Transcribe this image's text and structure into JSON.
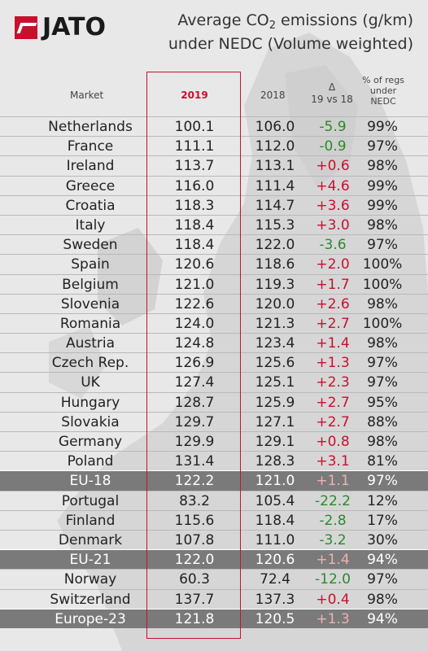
{
  "brand": {
    "logo_text": "JATO",
    "logo_color": "#c8102e"
  },
  "title": {
    "line1_pre": "Average CO",
    "line1_sub": "2",
    "line1_post": " emissions (g/km)",
    "line2": "under NEDC (Volume weighted)"
  },
  "headers": {
    "market": "Market",
    "y2019": "2019",
    "y2018": "2018",
    "delta_symbol": "Δ",
    "delta_label": "19 vs 18",
    "regs_line1": "% of regs",
    "regs_line2": "under",
    "regs_line3": "NEDC"
  },
  "colors": {
    "highlight": "#c8102e",
    "increase": "#c8102e",
    "decrease": "#2a8a2a",
    "aggregate_row": "#7a7a7a"
  },
  "rows": [
    {
      "market": "Netherlands",
      "y2019": "100.1",
      "y2018": "106.0",
      "delta": "-5.9",
      "regs": "99%",
      "agg": false
    },
    {
      "market": "France",
      "y2019": "111.1",
      "y2018": "112.0",
      "delta": "-0.9",
      "regs": "97%",
      "agg": false
    },
    {
      "market": "Ireland",
      "y2019": "113.7",
      "y2018": "113.1",
      "delta": "+0.6",
      "regs": "98%",
      "agg": false
    },
    {
      "market": "Greece",
      "y2019": "116.0",
      "y2018": "111.4",
      "delta": "+4.6",
      "regs": "99%",
      "agg": false
    },
    {
      "market": "Croatia",
      "y2019": "118.3",
      "y2018": "114.7",
      "delta": "+3.6",
      "regs": "99%",
      "agg": false
    },
    {
      "market": "Italy",
      "y2019": "118.4",
      "y2018": "115.3",
      "delta": "+3.0",
      "regs": "98%",
      "agg": false
    },
    {
      "market": "Sweden",
      "y2019": "118.4",
      "y2018": "122.0",
      "delta": "-3.6",
      "regs": "97%",
      "agg": false
    },
    {
      "market": "Spain",
      "y2019": "120.6",
      "y2018": "118.6",
      "delta": "+2.0",
      "regs": "100%",
      "agg": false
    },
    {
      "market": "Belgium",
      "y2019": "121.0",
      "y2018": "119.3",
      "delta": "+1.7",
      "regs": "100%",
      "agg": false
    },
    {
      "market": "Slovenia",
      "y2019": "122.6",
      "y2018": "120.0",
      "delta": "+2.6",
      "regs": "98%",
      "agg": false
    },
    {
      "market": "Romania",
      "y2019": "124.0",
      "y2018": "121.3",
      "delta": "+2.7",
      "regs": "100%",
      "agg": false
    },
    {
      "market": "Austria",
      "y2019": "124.8",
      "y2018": "123.4",
      "delta": "+1.4",
      "regs": "98%",
      "agg": false
    },
    {
      "market": "Czech Rep.",
      "y2019": "126.9",
      "y2018": "125.6",
      "delta": "+1.3",
      "regs": "97%",
      "agg": false
    },
    {
      "market": "UK",
      "y2019": "127.4",
      "y2018": "125.1",
      "delta": "+2.3",
      "regs": "97%",
      "agg": false
    },
    {
      "market": "Hungary",
      "y2019": "128.7",
      "y2018": "125.9",
      "delta": "+2.7",
      "regs": "95%",
      "agg": false
    },
    {
      "market": "Slovakia",
      "y2019": "129.7",
      "y2018": "127.1",
      "delta": "+2.7",
      "regs": "88%",
      "agg": false
    },
    {
      "market": "Germany",
      "y2019": "129.9",
      "y2018": "129.1",
      "delta": "+0.8",
      "regs": "98%",
      "agg": false
    },
    {
      "market": "Poland",
      "y2019": "131.4",
      "y2018": "128.3",
      "delta": "+3.1",
      "regs": "81%",
      "agg": false
    },
    {
      "market": "EU-18",
      "y2019": "122.2",
      "y2018": "121.0",
      "delta": "+1.1",
      "regs": "97%",
      "agg": true
    },
    {
      "market": "Portugal",
      "y2019": "83.2",
      "y2018": "105.4",
      "delta": "-22.2",
      "regs": "12%",
      "agg": false
    },
    {
      "market": "Finland",
      "y2019": "115.6",
      "y2018": "118.4",
      "delta": "-2.8",
      "regs": "17%",
      "agg": false
    },
    {
      "market": "Denmark",
      "y2019": "107.8",
      "y2018": "111.0",
      "delta": "-3.2",
      "regs": "30%",
      "agg": false
    },
    {
      "market": "EU-21",
      "y2019": "122.0",
      "y2018": "120.6",
      "delta": "+1.4",
      "regs": "94%",
      "agg": true
    },
    {
      "market": "Norway",
      "y2019": "60.3",
      "y2018": "72.4",
      "delta": "-12.0",
      "regs": "97%",
      "agg": false
    },
    {
      "market": "Switzerland",
      "y2019": "137.7",
      "y2018": "137.3",
      "delta": "+0.4",
      "regs": "98%",
      "agg": false
    },
    {
      "market": "Europe-23",
      "y2019": "121.8",
      "y2018": "120.5",
      "delta": "+1.3",
      "regs": "94%",
      "agg": true
    }
  ]
}
